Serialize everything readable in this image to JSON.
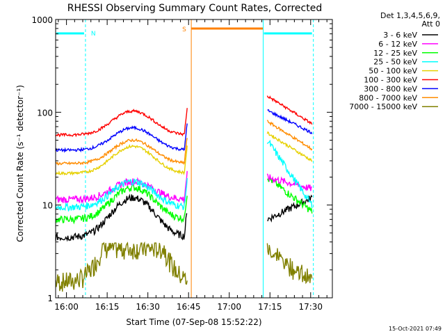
{
  "chart_data": {
    "type": "line",
    "title": "RHESSI Observing Summary Count Rates, Corrected",
    "xlabel": "Start Time (07-Sep-08 15:52:22)",
    "ylabel": "Corrected Count Rate (s⁻¹ detector⁻¹)",
    "yscale": "log",
    "ylim": [
      1,
      1000
    ],
    "xlim_minutes": [
      -4,
      98
    ],
    "x_tick_labels": [
      "16:00",
      "16:15",
      "16:30",
      "16:45",
      "17:00",
      "17:15",
      "17:30"
    ],
    "x_tick_minutes": [
      0,
      15,
      30,
      45,
      60,
      75,
      90
    ],
    "y_tick_labels": [
      "1",
      "10",
      "100",
      "1000"
    ],
    "y_tick_values": [
      1,
      10,
      100,
      1000
    ],
    "legend": {
      "header_line1": "Det 1,3,4,5,6,9,",
      "header_line2": "Att 0",
      "entries": [
        {
          "label": "3 - 6 keV",
          "color": "#000000"
        },
        {
          "label": "6 - 12 keV",
          "color": "#ff00ff"
        },
        {
          "label": "12 - 25 keV",
          "color": "#00ff00"
        },
        {
          "label": "25 - 50 keV",
          "color": "#00ffff"
        },
        {
          "label": "50 - 100 keV",
          "color": "#e6d000"
        },
        {
          "label": "100 - 300 keV",
          "color": "#ff0000"
        },
        {
          "label": "300 - 800 keV",
          "color": "#0000ff"
        },
        {
          "label": "800 - 7000 keV",
          "color": "#ff8c00"
        },
        {
          "label": "7000 - 15000 keV",
          "color": "#808000"
        }
      ]
    },
    "flags": {
      "night_label": "N",
      "saa_label": "S",
      "night_color": "#00ffff",
      "saa_color": "#ff8000",
      "night_intervals_minutes": [
        [
          -4,
          7
        ],
        [
          72.5,
          91
        ]
      ],
      "saa_intervals_minutes": [
        [
          46,
          72.5
        ]
      ]
    },
    "series": [
      {
        "name": "3 - 6 keV",
        "color": "#000000",
        "base": 4.5,
        "peak": 12,
        "post": [
          7,
          12
        ]
      },
      {
        "name": "6 - 12 keV",
        "color": "#ff00ff",
        "base": 11.5,
        "peak": 18,
        "post": [
          20,
          15
        ]
      },
      {
        "name": "12 - 25 keV",
        "color": "#00ff00",
        "base": 7,
        "peak": 15.5,
        "post": [
          20,
          8.5
        ]
      },
      {
        "name": "25 - 50 keV",
        "color": "#00ffff",
        "base": 9.5,
        "peak": 18,
        "post": [
          50,
          10
        ]
      },
      {
        "name": "50 - 100 keV",
        "color": "#e6d000",
        "base": 22,
        "peak": 43,
        "post": [
          60,
          30
        ]
      },
      {
        "name": "100 - 300 keV",
        "color": "#ff0000",
        "base": 57,
        "peak": 103,
        "post": [
          150,
          75
        ]
      },
      {
        "name": "300 - 800 keV",
        "color": "#0000ff",
        "base": 39,
        "peak": 68,
        "post": [
          105,
          60
        ]
      },
      {
        "name": "800 - 7000 keV",
        "color": "#ff8c00",
        "base": 28,
        "peak": 50,
        "post": [
          80,
          40
        ]
      },
      {
        "name": "7000 - 15000 keV",
        "color": "#808000",
        "base": 1.5,
        "peak": 3.4,
        "post": [
          3.4,
          1.5
        ]
      }
    ]
  },
  "footer": {
    "timestamp": "15-Oct-2021 07:49"
  }
}
